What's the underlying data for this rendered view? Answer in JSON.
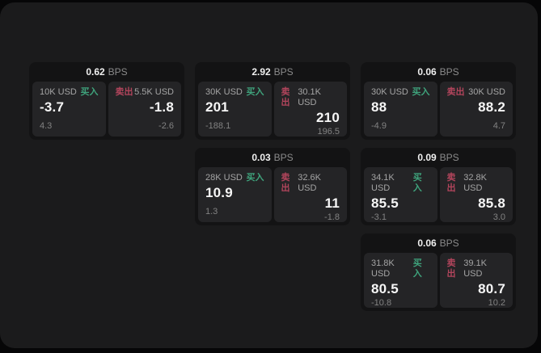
{
  "colors": {
    "buy_green": "#3fa37c",
    "sell_red": "#b2455c"
  },
  "cards": [
    {
      "bps": "0.62",
      "unit": "BPS",
      "buy": {
        "notional": "10K USD",
        "label": "买入",
        "price": "-3.7",
        "delta": "4.3"
      },
      "sell": {
        "label": "卖出",
        "notional": "5.5K USD",
        "price": "-1.8",
        "delta": "-2.6"
      }
    },
    {
      "bps": "2.92",
      "unit": "BPS",
      "buy": {
        "notional": "30K USD",
        "label": "买入",
        "price": "201",
        "delta": "-188.1"
      },
      "sell": {
        "label": "卖出",
        "notional": "30.1K USD",
        "price": "210",
        "delta": "196.5"
      }
    },
    {
      "bps": "0.06",
      "unit": "BPS",
      "buy": {
        "notional": "30K USD",
        "label": "买入",
        "price": "88",
        "delta": "-4.9"
      },
      "sell": {
        "label": "卖出",
        "notional": "30K USD",
        "price": "88.2",
        "delta": "4.7"
      }
    },
    {
      "bps": "0.03",
      "unit": "BPS",
      "buy": {
        "notional": "28K USD",
        "label": "买入",
        "price": "10.9",
        "delta": "1.3"
      },
      "sell": {
        "label": "卖出",
        "notional": "32.6K USD",
        "price": "11",
        "delta": "-1.8"
      }
    },
    {
      "bps": "0.09",
      "unit": "BPS",
      "buy": {
        "notional": "34.1K USD",
        "label": "买入",
        "price": "85.5",
        "delta": "-3.1"
      },
      "sell": {
        "label": "卖出",
        "notional": "32.8K USD",
        "price": "85.8",
        "delta": "3.0"
      }
    },
    {
      "bps": "0.06",
      "unit": "BPS",
      "buy": {
        "notional": "31.8K USD",
        "label": "买入",
        "price": "80.5",
        "delta": "-10.8"
      },
      "sell": {
        "label": "卖出",
        "notional": "39.1K USD",
        "price": "80.7",
        "delta": "10.2"
      }
    }
  ]
}
